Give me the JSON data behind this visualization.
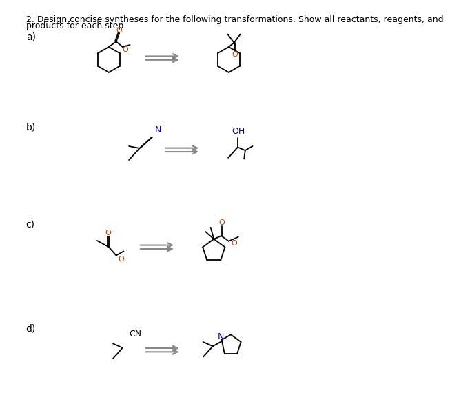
{
  "bg_color": "#ffffff",
  "line_color": "#000000",
  "arrow_color": "#888888",
  "N_color": "#0000bb",
  "O_color": "#bb4400",
  "OH_color": "#0000bb",
  "title_color": "#000000",
  "title_text1": "2. Design concise syntheses for the following transformations. Show all reactants, reagents, and",
  "title_text2": "products for each step.",
  "label_a": "a)",
  "label_b": "b)",
  "label_c": "c)",
  "label_d": "d)"
}
